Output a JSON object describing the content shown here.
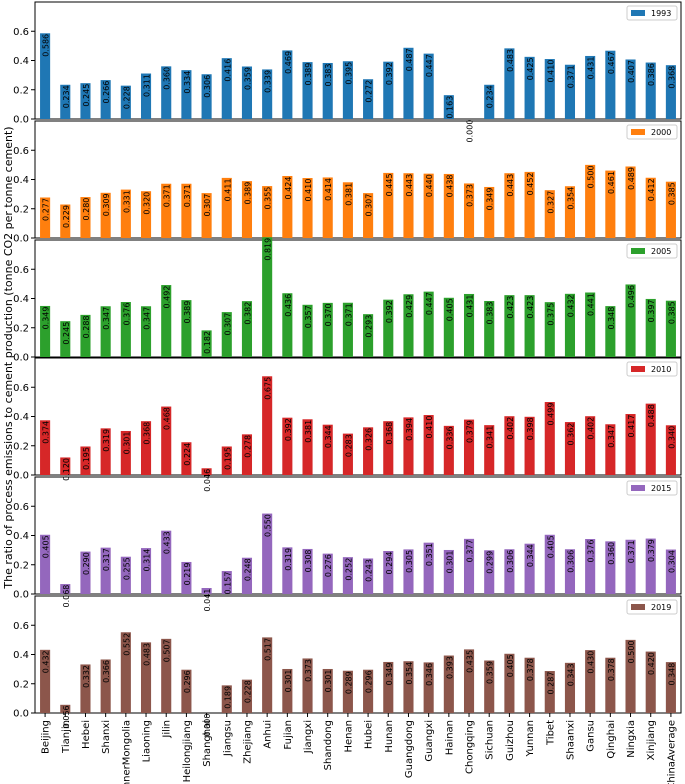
{
  "chart_data": {
    "type": "bar",
    "ylabel": "The ratio of process emissions to cement production (tonne CO2 per tonne cement)",
    "ylim": [
      0,
      0.8
    ],
    "yticks": [
      "0.0",
      "0.2",
      "0.4",
      "0.6"
    ],
    "legend_placement": "top-right",
    "categories": [
      "Beijing",
      "Tianjin",
      "Hebei",
      "Shanxi",
      "InnerMongolia",
      "Liaoning",
      "Jilin",
      "Heilongjiang",
      "Shanghai",
      "Jiangsu",
      "Zhejiang",
      "Anhui",
      "Fujian",
      "Jiangxi",
      "Shandong",
      "Henan",
      "Hubei",
      "Hunan",
      "Guangdong",
      "Guangxi",
      "Hainan",
      "Chongqing",
      "Sichuan",
      "Guizhou",
      "Yunnan",
      "Tibet",
      "Shaanxi",
      "Gansu",
      "Qinghai",
      "Ningxia",
      "Xinjiang",
      "ChinaAverage"
    ],
    "series": [
      {
        "name": "1993",
        "color": "#1f77b4",
        "values": [
          0.586,
          0.234,
          0.245,
          0.266,
          0.228,
          0.311,
          0.36,
          0.334,
          0.306,
          0.416,
          0.359,
          0.339,
          0.469,
          0.389,
          0.383,
          0.395,
          0.272,
          0.392,
          0.487,
          0.447,
          0.163,
          0.0,
          0.234,
          0.483,
          0.425,
          0.41,
          0.371,
          0.431,
          0.467,
          0.407,
          0.386,
          0.368
        ]
      },
      {
        "name": "2000",
        "color": "#ff7f0e",
        "values": [
          0.277,
          0.229,
          0.28,
          0.309,
          0.331,
          0.32,
          0.371,
          0.371,
          0.307,
          0.411,
          0.389,
          0.355,
          0.424,
          0.41,
          0.414,
          0.381,
          0.307,
          0.445,
          0.443,
          0.44,
          0.438,
          0.373,
          0.349,
          0.443,
          0.452,
          0.327,
          0.354,
          0.5,
          0.461,
          0.489,
          0.412,
          0.385
        ]
      },
      {
        "name": "2005",
        "color": "#2ca02c",
        "values": [
          0.349,
          0.245,
          0.288,
          0.347,
          0.376,
          0.347,
          0.492,
          0.389,
          0.182,
          0.307,
          0.382,
          0.819,
          0.436,
          0.357,
          0.37,
          0.371,
          0.293,
          0.392,
          0.429,
          0.447,
          0.405,
          0.431,
          0.383,
          0.423,
          0.423,
          0.375,
          0.432,
          0.441,
          0.348,
          0.496,
          0.397,
          0.385
        ]
      },
      {
        "name": "2010",
        "color": "#d62728",
        "values": [
          0.374,
          0.12,
          0.195,
          0.319,
          0.301,
          0.368,
          0.468,
          0.224,
          0.046,
          0.195,
          0.278,
          0.675,
          0.392,
          0.381,
          0.344,
          0.283,
          0.326,
          0.368,
          0.394,
          0.41,
          0.336,
          0.379,
          0.341,
          0.402,
          0.398,
          0.499,
          0.362,
          0.402,
          0.347,
          0.417,
          0.488,
          0.34
        ]
      },
      {
        "name": "2015",
        "color": "#9467bd",
        "values": [
          0.405,
          0.068,
          0.29,
          0.317,
          0.255,
          0.314,
          0.433,
          0.219,
          0.041,
          0.157,
          0.248,
          0.55,
          0.319,
          0.308,
          0.276,
          0.252,
          0.243,
          0.294,
          0.305,
          0.351,
          0.301,
          0.377,
          0.299,
          0.306,
          0.344,
          0.405,
          0.306,
          0.376,
          0.36,
          0.371,
          0.379,
          0.304
        ]
      },
      {
        "name": "2019",
        "color": "#8c564b",
        "values": [
          0.432,
          0.056,
          0.332,
          0.366,
          0.552,
          0.483,
          0.507,
          0.296,
          0.0,
          0.189,
          0.228,
          0.517,
          0.301,
          0.373,
          0.301,
          0.289,
          0.296,
          0.349,
          0.354,
          0.346,
          0.393,
          0.435,
          0.359,
          0.405,
          0.378,
          0.287,
          0.343,
          0.43,
          0.378,
          0.5,
          0.42,
          0.348
        ]
      }
    ]
  }
}
